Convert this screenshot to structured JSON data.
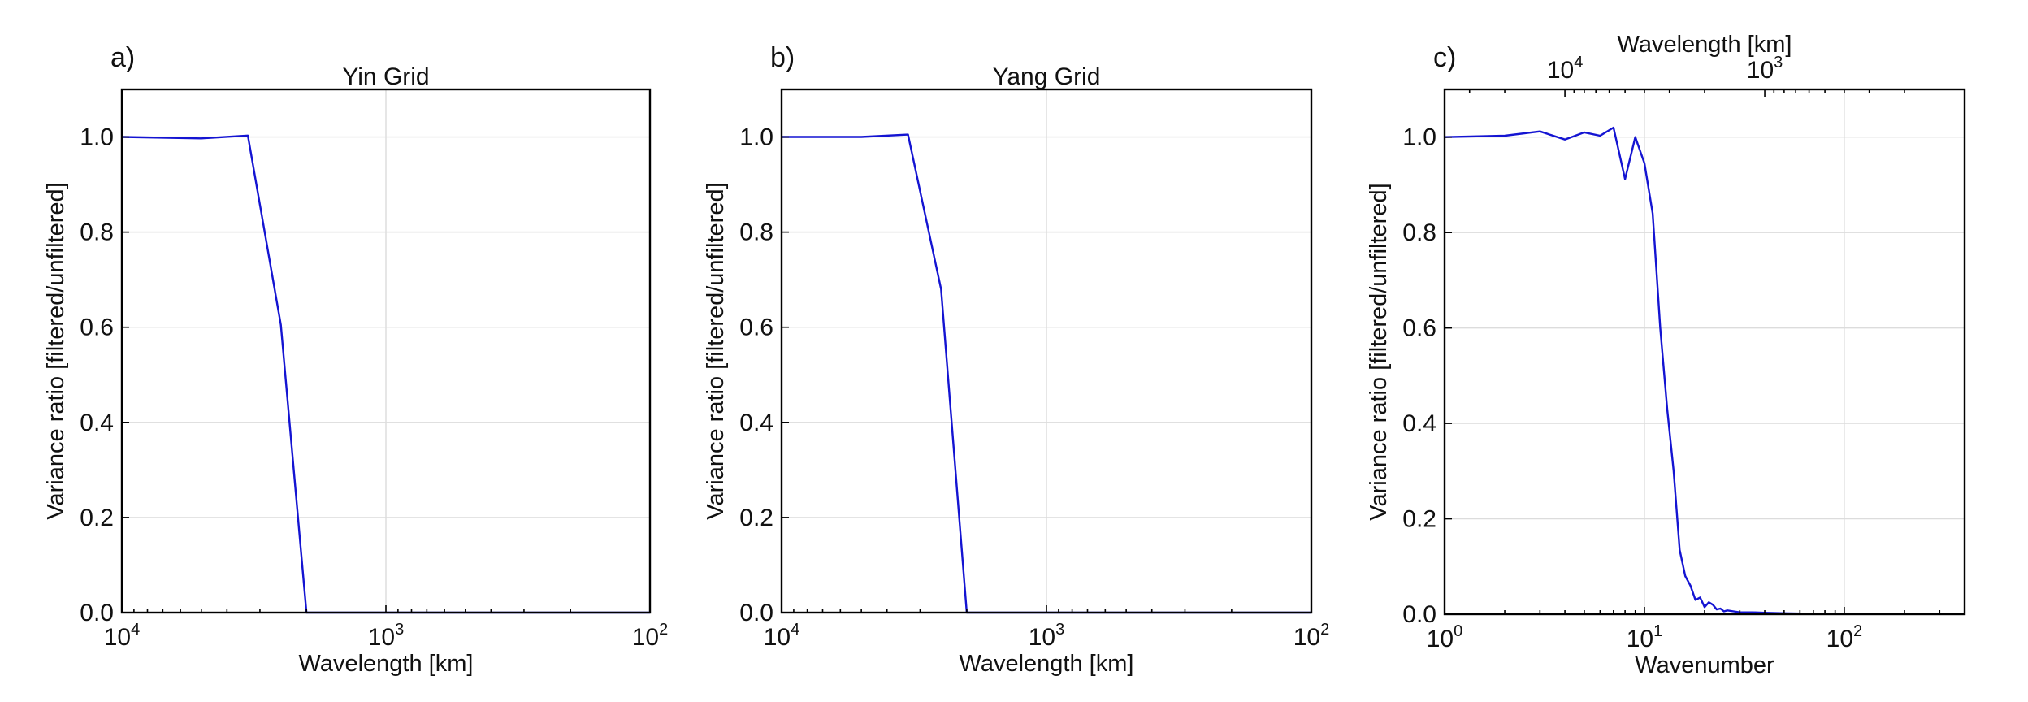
{
  "chart_data": [
    {
      "type": "line",
      "panel_label": "a)",
      "title": "Yin Grid",
      "xlabel": "Wavelength [km]",
      "ylabel": "Variance ratio [filtered/unfiltered]",
      "x_scale": "log",
      "x_reversed": true,
      "xlim": [
        10000,
        100
      ],
      "ylim": [
        0,
        1.1
      ],
      "grid": true,
      "x_tick_labels": [
        {
          "value": 10000,
          "base": "10",
          "exp": "4"
        },
        {
          "value": 1000,
          "base": "10",
          "exp": "3"
        },
        {
          "value": 100,
          "base": "10",
          "exp": "2"
        }
      ],
      "y_ticks": [
        0.0,
        0.2,
        0.4,
        0.6,
        0.8,
        1.0
      ],
      "y_tick_labels": [
        "0.0",
        "0.2",
        "0.4",
        "0.6",
        "0.8",
        "1.0"
      ],
      "series": [
        {
          "color": "#1414d2",
          "x": [
            10000,
            5000,
            3333,
            2500,
            2000,
            100
          ],
          "y": [
            1.0,
            0.997,
            1.003,
            0.605,
            0.0,
            0.0
          ]
        }
      ]
    },
    {
      "type": "line",
      "panel_label": "b)",
      "title": "Yang Grid",
      "xlabel": "Wavelength [km]",
      "ylabel": "Variance ratio [filtered/unfiltered]",
      "x_scale": "log",
      "x_reversed": true,
      "xlim": [
        10000,
        100
      ],
      "ylim": [
        0,
        1.1
      ],
      "grid": true,
      "x_tick_labels": [
        {
          "value": 10000,
          "base": "10",
          "exp": "4"
        },
        {
          "value": 1000,
          "base": "10",
          "exp": "3"
        },
        {
          "value": 100,
          "base": "10",
          "exp": "2"
        }
      ],
      "y_ticks": [
        0.0,
        0.2,
        0.4,
        0.6,
        0.8,
        1.0
      ],
      "y_tick_labels": [
        "0.0",
        "0.2",
        "0.4",
        "0.6",
        "0.8",
        "1.0"
      ],
      "series": [
        {
          "color": "#1414d2",
          "x": [
            10000,
            5000,
            3333,
            2500,
            2000,
            100
          ],
          "y": [
            1.0,
            1.0,
            1.005,
            0.68,
            0.0,
            0.0
          ]
        }
      ]
    },
    {
      "type": "line",
      "panel_label": "c)",
      "title": "",
      "xlabel": "Wavenumber",
      "ylabel": "Variance ratio [filtered/unfiltered]",
      "secondary_xlabel": "Wavelength [km]",
      "x_scale": "log",
      "xlim": [
        1,
        400
      ],
      "ylim": [
        0,
        1.1
      ],
      "grid": true,
      "x_tick_labels": [
        {
          "value": 1,
          "base": "10",
          "exp": "0"
        },
        {
          "value": 10,
          "base": "10",
          "exp": "1"
        },
        {
          "value": 100,
          "base": "10",
          "exp": "2"
        }
      ],
      "secondary_x_tick_labels": [
        {
          "value": 10000,
          "base": "10",
          "exp": "4"
        },
        {
          "value": 1000,
          "base": "10",
          "exp": "3"
        }
      ],
      "y_ticks": [
        0.0,
        0.2,
        0.4,
        0.6,
        0.8,
        1.0
      ],
      "y_tick_labels": [
        "0.0",
        "0.2",
        "0.4",
        "0.6",
        "0.8",
        "1.0"
      ],
      "series": [
        {
          "color": "#1414d2",
          "x": [
            1,
            2,
            3,
            4,
            5,
            6,
            7,
            8,
            9,
            10,
            11,
            12,
            13,
            14,
            15,
            16,
            17,
            18,
            19,
            20,
            21,
            22,
            23,
            24,
            25,
            26,
            28,
            30,
            35,
            40,
            50,
            70,
            100,
            200,
            400
          ],
          "y": [
            1.0,
            1.003,
            1.012,
            0.995,
            1.01,
            1.003,
            1.02,
            0.912,
            1.0,
            0.945,
            0.84,
            0.6,
            0.43,
            0.3,
            0.135,
            0.08,
            0.06,
            0.03,
            0.035,
            0.015,
            0.025,
            0.02,
            0.01,
            0.012,
            0.006,
            0.008,
            0.006,
            0.004,
            0.004,
            0.003,
            0.002,
            0.001,
            0.001,
            0.001,
            0.001
          ]
        }
      ]
    }
  ]
}
